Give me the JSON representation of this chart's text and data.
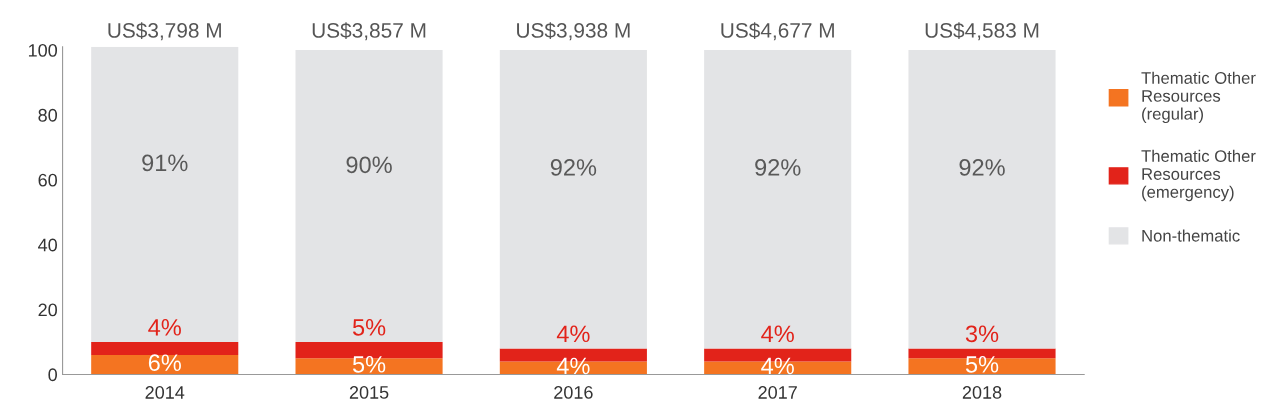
{
  "chart_data": {
    "type": "bar",
    "stacked": true,
    "categories": [
      "2014",
      "2015",
      "2016",
      "2017",
      "2018"
    ],
    "series": [
      {
        "name": "Thematic Other\nResources\n(regular)",
        "color": "#f47421",
        "values": [
          6,
          5,
          4,
          4,
          5
        ],
        "value_labels": [
          "6%",
          "5%",
          "4%",
          "4%",
          "5%"
        ]
      },
      {
        "name": "Thematic Other\nResources\n(emergency)",
        "color": "#e2231a",
        "values": [
          4,
          5,
          4,
          4,
          3
        ],
        "value_labels": [
          "4%",
          "5%",
          "4%",
          "4%",
          "3%"
        ]
      },
      {
        "name": "Non-thematic",
        "color": "#e3e4e6",
        "values": [
          91,
          90,
          92,
          92,
          92
        ],
        "value_labels": [
          "91%",
          "90%",
          "92%",
          "92%",
          "92%"
        ]
      }
    ],
    "totals": [
      "US$3,798 M",
      "US$3,857 M",
      "US$3,938 M",
      "US$4,677 M",
      "US$4,583 M"
    ],
    "ylim": [
      0,
      101
    ],
    "yticks": [
      0,
      20,
      40,
      60,
      80,
      100
    ],
    "grid": false,
    "legend": "right"
  }
}
